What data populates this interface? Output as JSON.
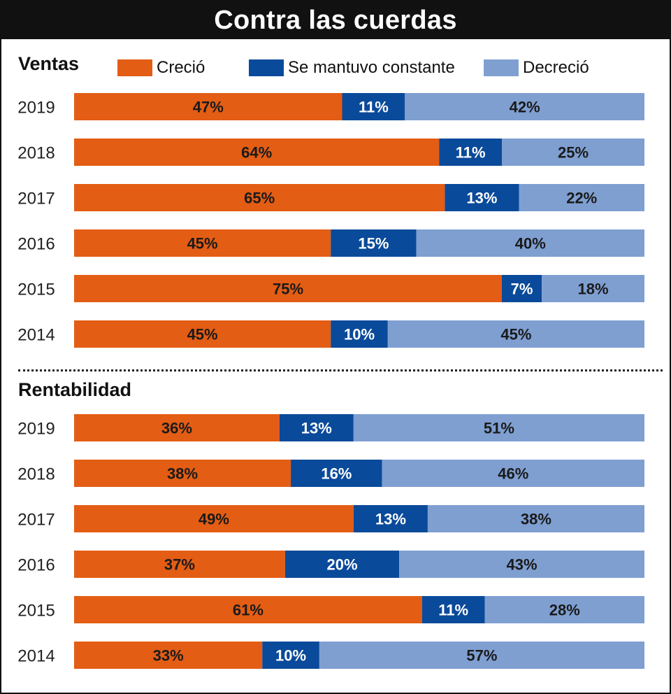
{
  "title": "Contra las cuerdas",
  "colors": {
    "grew": "#e35d14",
    "constant": "#0a4a9a",
    "decreased": "#7f9fd1",
    "label_on_orange": "#1a1a1a",
    "label_on_blue": "#ffffff",
    "label_on_light": "#1a1a1a"
  },
  "legend": [
    {
      "key": "grew",
      "label": "Creció"
    },
    {
      "key": "constant",
      "label": "Se mantuvo constante"
    },
    {
      "key": "decreased",
      "label": "Decreció"
    }
  ],
  "chart_data": [
    {
      "type": "bar",
      "orientation": "horizontal-stacked-100",
      "title": "Ventas",
      "categories": [
        "2019",
        "2018",
        "2017",
        "2016",
        "2015",
        "2014"
      ],
      "series": [
        {
          "name": "Creció",
          "values": [
            47,
            64,
            65,
            45,
            75,
            45
          ]
        },
        {
          "name": "Se mantuvo constante",
          "values": [
            11,
            11,
            13,
            15,
            7,
            10
          ]
        },
        {
          "name": "Decreció",
          "values": [
            42,
            25,
            22,
            40,
            18,
            45
          ]
        }
      ],
      "unit": "%",
      "xlim": [
        0,
        100
      ]
    },
    {
      "type": "bar",
      "orientation": "horizontal-stacked-100",
      "title": "Rentabilidad",
      "categories": [
        "2019",
        "2018",
        "2017",
        "2016",
        "2015",
        "2014"
      ],
      "series": [
        {
          "name": "Creció",
          "values": [
            36,
            38,
            49,
            37,
            61,
            33
          ]
        },
        {
          "name": "Se mantuvo constante",
          "values": [
            13,
            16,
            13,
            20,
            11,
            10
          ]
        },
        {
          "name": "Decreció",
          "values": [
            51,
            46,
            38,
            43,
            28,
            57
          ]
        }
      ],
      "unit": "%",
      "xlim": [
        0,
        100
      ]
    }
  ]
}
